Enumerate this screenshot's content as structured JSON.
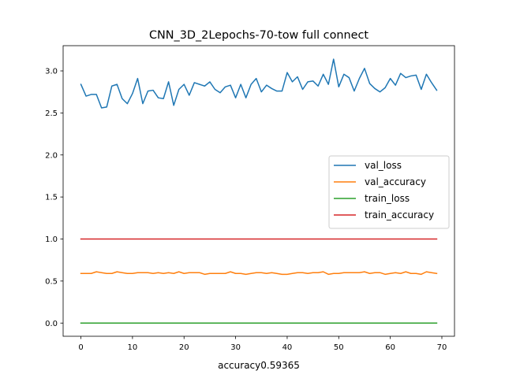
{
  "chart_data": {
    "type": "line",
    "title": "CNN_3D_2Lepochs-70-tow full connect",
    "xlabel": "accuracy0.59365",
    "ylabel": "",
    "xlim": [
      -3.45,
      72.45
    ],
    "ylim": [
      -0.157,
      3.3
    ],
    "xticks": [
      0,
      10,
      20,
      30,
      40,
      50,
      60,
      70
    ],
    "yticks": [
      0.0,
      0.5,
      1.0,
      1.5,
      2.0,
      2.5,
      3.0
    ],
    "ytick_labels": [
      "0.0",
      "0.5",
      "1.0",
      "1.5",
      "2.0",
      "2.5",
      "3.0"
    ],
    "grid": false,
    "legend_position": "center-right",
    "x": [
      0,
      1,
      2,
      3,
      4,
      5,
      6,
      7,
      8,
      9,
      10,
      11,
      12,
      13,
      14,
      15,
      16,
      17,
      18,
      19,
      20,
      21,
      22,
      23,
      24,
      25,
      26,
      27,
      28,
      29,
      30,
      31,
      32,
      33,
      34,
      35,
      36,
      37,
      38,
      39,
      40,
      41,
      42,
      43,
      44,
      45,
      46,
      47,
      48,
      49,
      50,
      51,
      52,
      53,
      54,
      55,
      56,
      57,
      58,
      59,
      60,
      61,
      62,
      63,
      64,
      65,
      66,
      67,
      68,
      69
    ],
    "series": [
      {
        "name": "val_loss",
        "color": "#1f77b4",
        "values": [
          2.84,
          2.7,
          2.72,
          2.72,
          2.56,
          2.57,
          2.82,
          2.84,
          2.67,
          2.61,
          2.73,
          2.91,
          2.61,
          2.76,
          2.77,
          2.68,
          2.67,
          2.87,
          2.59,
          2.78,
          2.84,
          2.71,
          2.86,
          2.84,
          2.82,
          2.87,
          2.78,
          2.74,
          2.81,
          2.83,
          2.68,
          2.84,
          2.68,
          2.84,
          2.91,
          2.75,
          2.83,
          2.79,
          2.76,
          2.76,
          2.98,
          2.87,
          2.93,
          2.78,
          2.87,
          2.88,
          2.82,
          2.96,
          2.84,
          3.14,
          2.81,
          2.96,
          2.92,
          2.76,
          2.91,
          3.03,
          2.85,
          2.79,
          2.75,
          2.8,
          2.91,
          2.83,
          2.97,
          2.92,
          2.94,
          2.95,
          2.78,
          2.96,
          2.86,
          2.77
        ]
      },
      {
        "name": "val_accuracy",
        "color": "#ff7f0e",
        "values": [
          0.59,
          0.59,
          0.59,
          0.61,
          0.6,
          0.59,
          0.59,
          0.61,
          0.6,
          0.59,
          0.59,
          0.6,
          0.6,
          0.6,
          0.59,
          0.6,
          0.59,
          0.6,
          0.59,
          0.61,
          0.59,
          0.6,
          0.6,
          0.6,
          0.58,
          0.59,
          0.59,
          0.59,
          0.59,
          0.61,
          0.59,
          0.59,
          0.58,
          0.59,
          0.6,
          0.6,
          0.59,
          0.6,
          0.59,
          0.58,
          0.58,
          0.59,
          0.6,
          0.6,
          0.59,
          0.6,
          0.6,
          0.61,
          0.58,
          0.59,
          0.59,
          0.6,
          0.6,
          0.6,
          0.6,
          0.61,
          0.59,
          0.6,
          0.6,
          0.58,
          0.59,
          0.6,
          0.59,
          0.61,
          0.59,
          0.59,
          0.58,
          0.61,
          0.6,
          0.59
        ]
      },
      {
        "name": "train_loss",
        "color": "#2ca02c",
        "values": [
          0,
          0,
          0,
          0,
          0,
          0,
          0,
          0,
          0,
          0,
          0,
          0,
          0,
          0,
          0,
          0,
          0,
          0,
          0,
          0,
          0,
          0,
          0,
          0,
          0,
          0,
          0,
          0,
          0,
          0,
          0,
          0,
          0,
          0,
          0,
          0,
          0,
          0,
          0,
          0,
          0,
          0,
          0,
          0,
          0,
          0,
          0,
          0,
          0,
          0,
          0,
          0,
          0,
          0,
          0,
          0,
          0,
          0,
          0,
          0,
          0,
          0,
          0,
          0,
          0,
          0,
          0,
          0,
          0,
          0
        ]
      },
      {
        "name": "train_accuracy",
        "color": "#d62728",
        "values": [
          1,
          1,
          1,
          1,
          1,
          1,
          1,
          1,
          1,
          1,
          1,
          1,
          1,
          1,
          1,
          1,
          1,
          1,
          1,
          1,
          1,
          1,
          1,
          1,
          1,
          1,
          1,
          1,
          1,
          1,
          1,
          1,
          1,
          1,
          1,
          1,
          1,
          1,
          1,
          1,
          1,
          1,
          1,
          1,
          1,
          1,
          1,
          1,
          1,
          1,
          1,
          1,
          1,
          1,
          1,
          1,
          1,
          1,
          1,
          1,
          1,
          1,
          1,
          1,
          1,
          1,
          1,
          1,
          1,
          1
        ]
      }
    ]
  }
}
